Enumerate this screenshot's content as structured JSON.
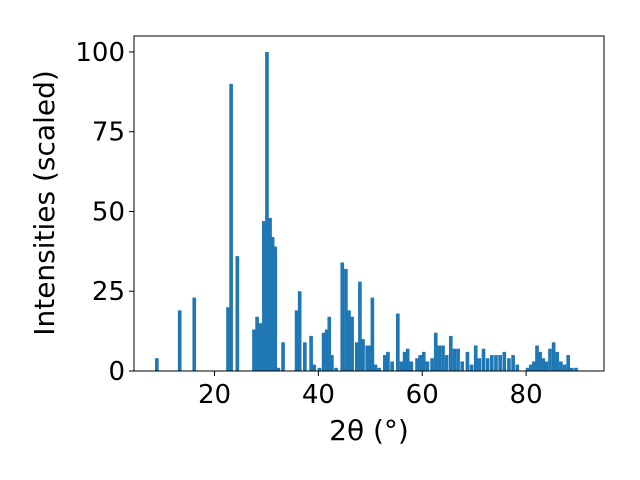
{
  "chart_data": {
    "type": "bar",
    "xlabel": "2θ (°)",
    "ylabel": "Intensities (scaled)",
    "xlim": [
      4.5,
      95
    ],
    "ylim": [
      0,
      105
    ],
    "x_ticks": [
      20,
      40,
      60,
      80
    ],
    "y_ticks": [
      0,
      25,
      50,
      75,
      100
    ],
    "grid": false,
    "bar_color": "#1f77b4",
    "bar_width_deg": 0.7,
    "series": [
      {
        "x": [
          8.9,
          13.3,
          16.1,
          22.6,
          23.2,
          24.4,
          27.6,
          28.2,
          28.8,
          29.5,
          30.1,
          30.7,
          31.2,
          31.7,
          32.3,
          33.2,
          35.8,
          36.4,
          37.4,
          38.6,
          39.2,
          40.2,
          41.0,
          41.6,
          42.1,
          42.6,
          43.4,
          44.6,
          45.3,
          45.9,
          46.5,
          47.4,
          48.0,
          48.6,
          49.4,
          49.9,
          50.4,
          51.0,
          51.7,
          52.8,
          53.4,
          54.2,
          55.3,
          56.0,
          56.6,
          57.2,
          57.9,
          59.0,
          59.6,
          60.3,
          61.0,
          61.9,
          62.6,
          63.3,
          64.0,
          64.7,
          65.5,
          66.2,
          66.9,
          67.7,
          68.7,
          69.5,
          70.3,
          71.0,
          71.8,
          72.6,
          73.4,
          74.2,
          75.0,
          75.8,
          76.7,
          77.5,
          78.3,
          80.3,
          80.9,
          81.5,
          82.1,
          82.7,
          83.3,
          83.9,
          84.6,
          85.3,
          86.0,
          86.7,
          87.4,
          88.1,
          88.8,
          89.6
        ],
        "values": [
          4,
          19,
          23,
          20,
          90,
          36,
          13,
          17,
          15,
          47,
          100,
          48,
          42,
          39,
          1,
          9,
          19,
          25,
          9,
          11,
          2,
          1,
          12,
          13,
          17,
          5,
          1,
          34,
          32,
          19,
          17,
          9,
          28,
          10,
          8,
          8,
          23,
          2,
          1,
          5,
          6,
          3,
          18,
          3,
          6,
          7,
          3,
          4,
          5,
          6,
          3,
          4,
          12,
          8,
          8,
          5,
          11,
          7,
          7,
          3,
          6,
          2,
          8,
          4,
          7,
          4,
          5,
          5,
          5,
          6,
          4,
          5,
          2,
          1,
          2,
          3,
          8,
          6,
          4,
          3,
          7,
          9,
          6,
          3,
          2,
          5,
          1,
          1
        ]
      }
    ]
  }
}
